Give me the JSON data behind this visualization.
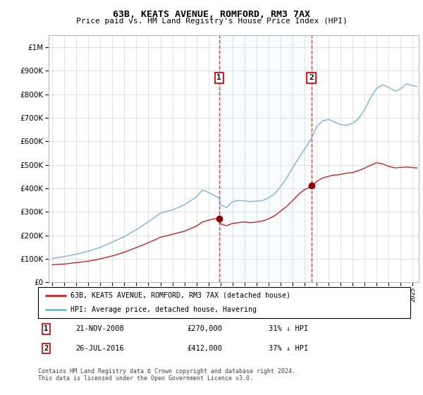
{
  "title": "63B, KEATS AVENUE, ROMFORD, RM3 7AX",
  "subtitle": "Price paid vs. HM Land Registry's House Price Index (HPI)",
  "legend_line1": "63B, KEATS AVENUE, ROMFORD, RM3 7AX (detached house)",
  "legend_line2": "HPI: Average price, detached house, Havering",
  "footnote1": "Contains HM Land Registry data © Crown copyright and database right 2024.",
  "footnote2": "This data is licensed under the Open Government Licence v3.0.",
  "sale1_date": "21-NOV-2008",
  "sale1_price": "£270,000",
  "sale1_hpi": "31% ↓ HPI",
  "sale2_date": "26-JUL-2016",
  "sale2_price": "£412,000",
  "sale2_hpi": "37% ↓ HPI",
  "sale1_year": 2008.89,
  "sale1_value": 270000,
  "sale2_year": 2016.56,
  "sale2_value": 412000,
  "hpi_line_color": "#7ab4d8",
  "sale_line_color": "#cc2222",
  "sale_point_color": "#8b0000",
  "vline_color": "#cc4444",
  "shade_color": "#ddeeff",
  "ylim_min": 0,
  "ylim_max": 1050000,
  "xlim_min": 1994.7,
  "xlim_max": 2025.5
}
